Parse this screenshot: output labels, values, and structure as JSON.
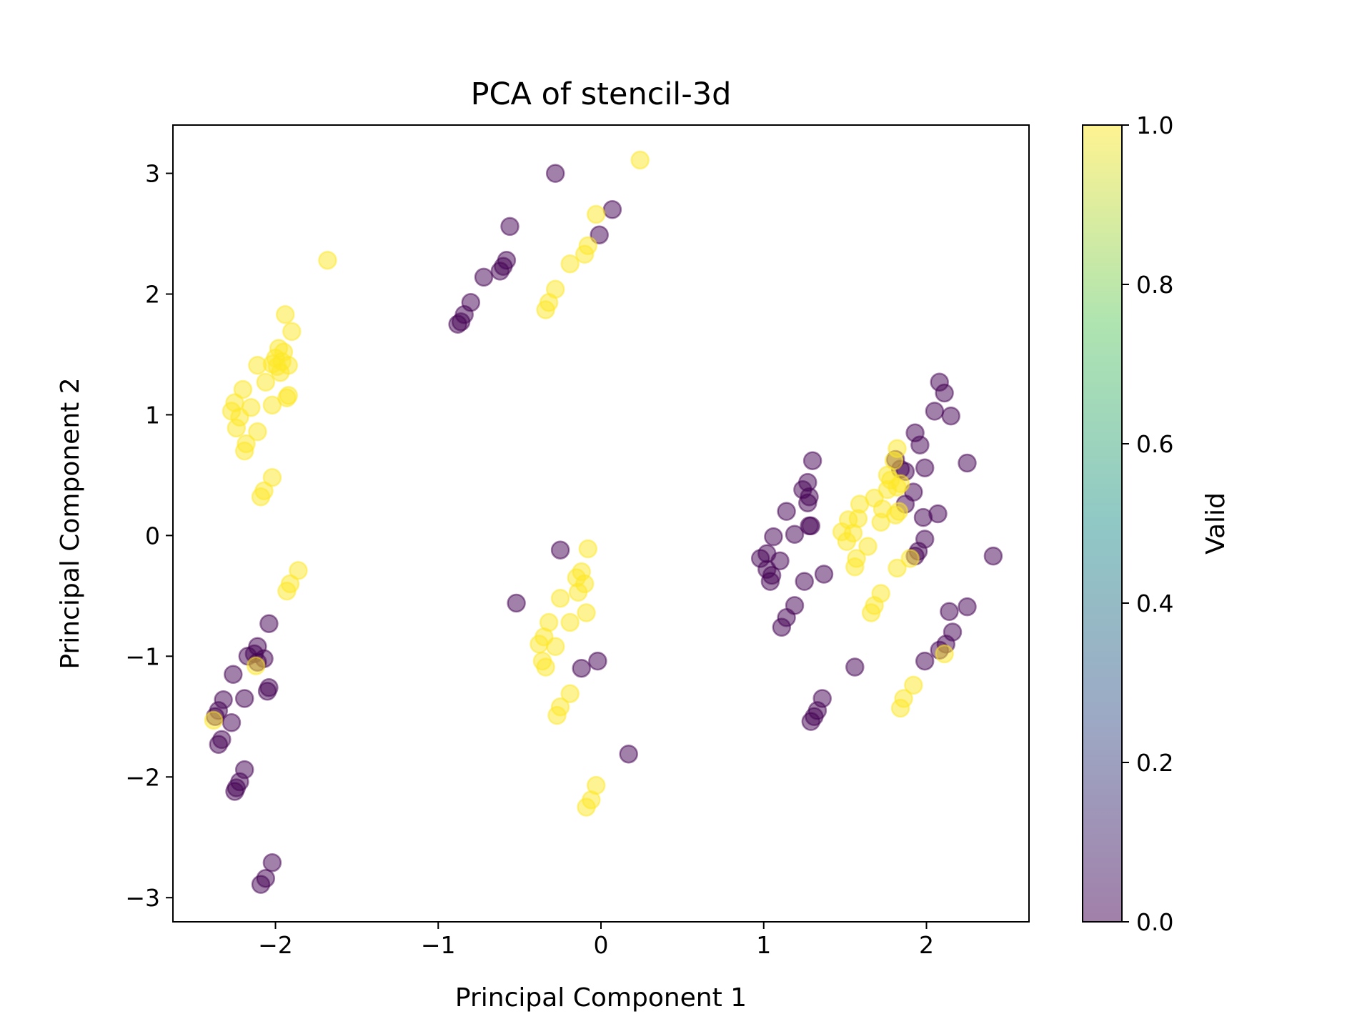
{
  "chart_data": {
    "type": "scatter",
    "title": "PCA of stencil-3d",
    "xlabel": "Principal Component 1",
    "ylabel": "Principal Component 2",
    "xlim": [
      -2.63,
      2.63
    ],
    "ylim": [
      -3.2,
      3.4
    ],
    "xticks": [
      -2,
      -1,
      0,
      1,
      2
    ],
    "yticks": [
      -3,
      -2,
      -1,
      0,
      1,
      2,
      3
    ],
    "grid": false,
    "marker_alpha": 0.5,
    "colorbar": {
      "label": "Valid",
      "range": [
        0.0,
        1.0
      ],
      "ticks": [
        "0.0",
        "0.2",
        "0.4",
        "0.6",
        "0.8",
        "1.0"
      ],
      "colormap": [
        "#440154",
        "#3b528b",
        "#21918c",
        "#5ec962",
        "#fde725"
      ]
    },
    "colors": {
      "invalid": "#440154",
      "valid": "#fde725"
    },
    "series": [
      {
        "valid": 1,
        "points": [
          [
            -1.68,
            2.28
          ],
          [
            -1.94,
            1.83
          ],
          [
            -1.9,
            1.69
          ],
          [
            -1.98,
            1.55
          ],
          [
            -1.95,
            1.52
          ],
          [
            -2.0,
            1.47
          ],
          [
            -1.96,
            1.44
          ],
          [
            -2.02,
            1.42
          ],
          [
            -2.11,
            1.41
          ],
          [
            -1.92,
            1.41
          ],
          [
            -1.99,
            1.4
          ],
          [
            -1.97,
            1.35
          ],
          [
            -2.06,
            1.27
          ],
          [
            -2.2,
            1.21
          ],
          [
            -1.92,
            1.16
          ],
          [
            -1.93,
            1.14
          ],
          [
            -2.25,
            1.1
          ],
          [
            -2.02,
            1.08
          ],
          [
            -2.15,
            1.06
          ],
          [
            -2.27,
            1.03
          ],
          [
            -2.22,
            0.98
          ],
          [
            -2.24,
            0.89
          ],
          [
            -2.11,
            0.86
          ],
          [
            -2.18,
            0.76
          ],
          [
            -2.19,
            0.7
          ],
          [
            -2.02,
            0.48
          ],
          [
            -2.07,
            0.37
          ],
          [
            -2.09,
            0.32
          ],
          [
            -1.86,
            -0.29
          ],
          [
            -1.91,
            -0.4
          ],
          [
            -1.93,
            -0.46
          ],
          [
            -2.12,
            -1.08
          ],
          [
            -2.38,
            -1.53
          ],
          [
            0.24,
            3.11
          ],
          [
            -0.03,
            2.66
          ],
          [
            -0.08,
            2.4
          ],
          [
            -0.1,
            2.33
          ],
          [
            -0.19,
            2.25
          ],
          [
            -0.28,
            2.04
          ],
          [
            -0.32,
            1.93
          ],
          [
            -0.34,
            1.87
          ],
          [
            -0.08,
            -0.11
          ],
          [
            -0.12,
            -0.3
          ],
          [
            -0.15,
            -0.35
          ],
          [
            -0.1,
            -0.4
          ],
          [
            -0.14,
            -0.47
          ],
          [
            -0.25,
            -0.52
          ],
          [
            -0.09,
            -0.64
          ],
          [
            -0.19,
            -0.72
          ],
          [
            -0.32,
            -0.72
          ],
          [
            -0.35,
            -0.84
          ],
          [
            -0.38,
            -0.9
          ],
          [
            -0.28,
            -0.92
          ],
          [
            -0.36,
            -1.04
          ],
          [
            -0.34,
            -1.09
          ],
          [
            -0.19,
            -1.31
          ],
          [
            -0.25,
            -1.42
          ],
          [
            -0.27,
            -1.49
          ],
          [
            -0.03,
            -2.07
          ],
          [
            -0.06,
            -2.19
          ],
          [
            -0.09,
            -2.25
          ],
          [
            1.82,
            0.72
          ],
          [
            1.8,
            0.62
          ],
          [
            1.76,
            0.5
          ],
          [
            1.78,
            0.46
          ],
          [
            1.84,
            0.43
          ],
          [
            1.82,
            0.4
          ],
          [
            1.76,
            0.38
          ],
          [
            1.68,
            0.31
          ],
          [
            1.59,
            0.26
          ],
          [
            1.73,
            0.22
          ],
          [
            1.83,
            0.2
          ],
          [
            1.81,
            0.17
          ],
          [
            1.58,
            0.14
          ],
          [
            1.52,
            0.13
          ],
          [
            1.72,
            0.11
          ],
          [
            1.48,
            0.03
          ],
          [
            1.55,
            0.02
          ],
          [
            1.51,
            -0.05
          ],
          [
            1.57,
            -0.19
          ],
          [
            1.56,
            -0.26
          ],
          [
            1.64,
            -0.09
          ],
          [
            1.9,
            -0.19
          ],
          [
            1.82,
            -0.27
          ],
          [
            1.72,
            -0.48
          ],
          [
            1.68,
            -0.58
          ],
          [
            1.66,
            -0.64
          ],
          [
            1.92,
            -1.24
          ],
          [
            1.86,
            -1.35
          ],
          [
            1.84,
            -1.43
          ],
          [
            2.11,
            -0.98
          ]
        ]
      },
      {
        "valid": 0,
        "points": [
          [
            -0.28,
            3.0
          ],
          [
            0.07,
            2.7
          ],
          [
            -0.01,
            2.49
          ],
          [
            -0.56,
            2.56
          ],
          [
            -0.58,
            2.28
          ],
          [
            -0.6,
            2.23
          ],
          [
            -0.62,
            2.19
          ],
          [
            -0.72,
            2.14
          ],
          [
            -0.8,
            1.93
          ],
          [
            -0.84,
            1.83
          ],
          [
            -0.86,
            1.77
          ],
          [
            -0.88,
            1.75
          ],
          [
            -0.25,
            -0.12
          ],
          [
            -0.52,
            -0.56
          ],
          [
            -0.02,
            -1.04
          ],
          [
            -0.12,
            -1.1
          ],
          [
            0.17,
            -1.81
          ],
          [
            -2.04,
            -0.73
          ],
          [
            -2.11,
            -0.92
          ],
          [
            -2.13,
            -0.98
          ],
          [
            -2.17,
            -1.0
          ],
          [
            -2.07,
            -1.02
          ],
          [
            -2.11,
            -1.05
          ],
          [
            -2.26,
            -1.15
          ],
          [
            -2.04,
            -1.26
          ],
          [
            -2.05,
            -1.29
          ],
          [
            -2.19,
            -1.35
          ],
          [
            -2.32,
            -1.36
          ],
          [
            -2.35,
            -1.45
          ],
          [
            -2.37,
            -1.5
          ],
          [
            -2.27,
            -1.55
          ],
          [
            -2.33,
            -1.69
          ],
          [
            -2.35,
            -1.73
          ],
          [
            -2.19,
            -1.94
          ],
          [
            -2.22,
            -2.04
          ],
          [
            -2.24,
            -2.09
          ],
          [
            -2.25,
            -2.12
          ],
          [
            -2.02,
            -2.71
          ],
          [
            -2.06,
            -2.84
          ],
          [
            -2.09,
            -2.89
          ],
          [
            2.08,
            1.27
          ],
          [
            2.11,
            1.18
          ],
          [
            2.15,
            0.99
          ],
          [
            2.05,
            1.03
          ],
          [
            1.93,
            0.85
          ],
          [
            1.96,
            0.75
          ],
          [
            1.99,
            0.56
          ],
          [
            1.81,
            0.63
          ],
          [
            1.87,
            0.53
          ],
          [
            1.84,
            0.55
          ],
          [
            1.92,
            0.36
          ],
          [
            1.87,
            0.26
          ],
          [
            1.98,
            0.15
          ],
          [
            2.07,
            0.18
          ],
          [
            2.25,
            0.6
          ],
          [
            1.3,
            0.62
          ],
          [
            1.27,
            0.44
          ],
          [
            1.24,
            0.38
          ],
          [
            1.28,
            0.32
          ],
          [
            1.27,
            0.27
          ],
          [
            1.29,
            0.08
          ],
          [
            1.14,
            0.2
          ],
          [
            1.28,
            0.08
          ],
          [
            1.19,
            0.01
          ],
          [
            1.06,
            -0.01
          ],
          [
            1.02,
            -0.15
          ],
          [
            0.98,
            -0.19
          ],
          [
            1.1,
            -0.21
          ],
          [
            1.02,
            -0.28
          ],
          [
            1.05,
            -0.33
          ],
          [
            1.04,
            -0.38
          ],
          [
            1.25,
            -0.38
          ],
          [
            1.37,
            -0.32
          ],
          [
            1.19,
            -0.58
          ],
          [
            1.14,
            -0.68
          ],
          [
            1.11,
            -0.76
          ],
          [
            1.99,
            -0.03
          ],
          [
            1.95,
            -0.13
          ],
          [
            1.93,
            -0.17
          ],
          [
            2.41,
            -0.17
          ],
          [
            2.14,
            -0.63
          ],
          [
            2.25,
            -0.59
          ],
          [
            2.16,
            -0.8
          ],
          [
            2.12,
            -0.9
          ],
          [
            2.08,
            -0.95
          ],
          [
            1.99,
            -1.04
          ],
          [
            1.56,
            -1.09
          ],
          [
            1.36,
            -1.35
          ],
          [
            1.33,
            -1.45
          ],
          [
            1.31,
            -1.5
          ],
          [
            1.29,
            -1.54
          ]
        ]
      }
    ]
  }
}
